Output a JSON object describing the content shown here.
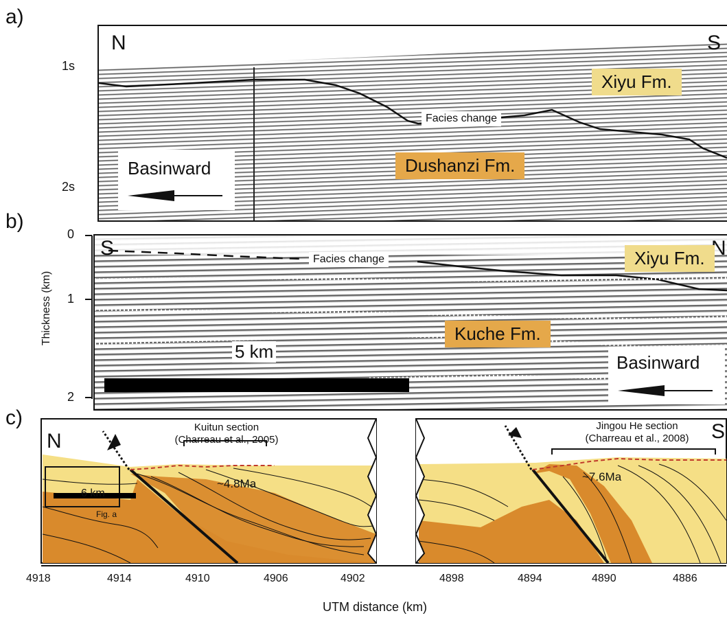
{
  "panel_a": {
    "letter": "a)",
    "ticks": [
      "1s",
      "2s"
    ],
    "north": "N",
    "south": "S",
    "upper_fm": "Xiyu Fm.",
    "lower_fm": "Dushanzi Fm.",
    "facies": "Facies change",
    "basinward": "Basinward"
  },
  "panel_b": {
    "letter": "b)",
    "ticks": [
      "0",
      "1",
      "2"
    ],
    "ylabel": "Thickness (km)",
    "south": "S",
    "north": "N",
    "upper_fm": "Xiyu Fm.",
    "lower_fm": "Kuche Fm.",
    "facies": "Facies change",
    "scale": "5 km",
    "basinward": "Basinward"
  },
  "panel_c": {
    "letter": "c)",
    "north": "N",
    "south": "S",
    "kuitun_line1": "Kuitun section",
    "kuitun_line2": "(Charreau et al., 2005)",
    "jingou_line1": "Jingou He section",
    "jingou_line2": "(Charreau et al., 2008)",
    "age1": "~4.8Ma",
    "age2": "~7.6Ma",
    "fig_a": "Fig. a",
    "scale": "6 km",
    "x_ticks": [
      "4918",
      "4914",
      "4910",
      "4906",
      "4902",
      "4898",
      "4894",
      "4890",
      "4886"
    ],
    "xlabel": "UTM distance (km)"
  },
  "colors": {
    "yellow": "#f5df86",
    "orange": "#d98a2c",
    "fault": "#c0392b"
  }
}
